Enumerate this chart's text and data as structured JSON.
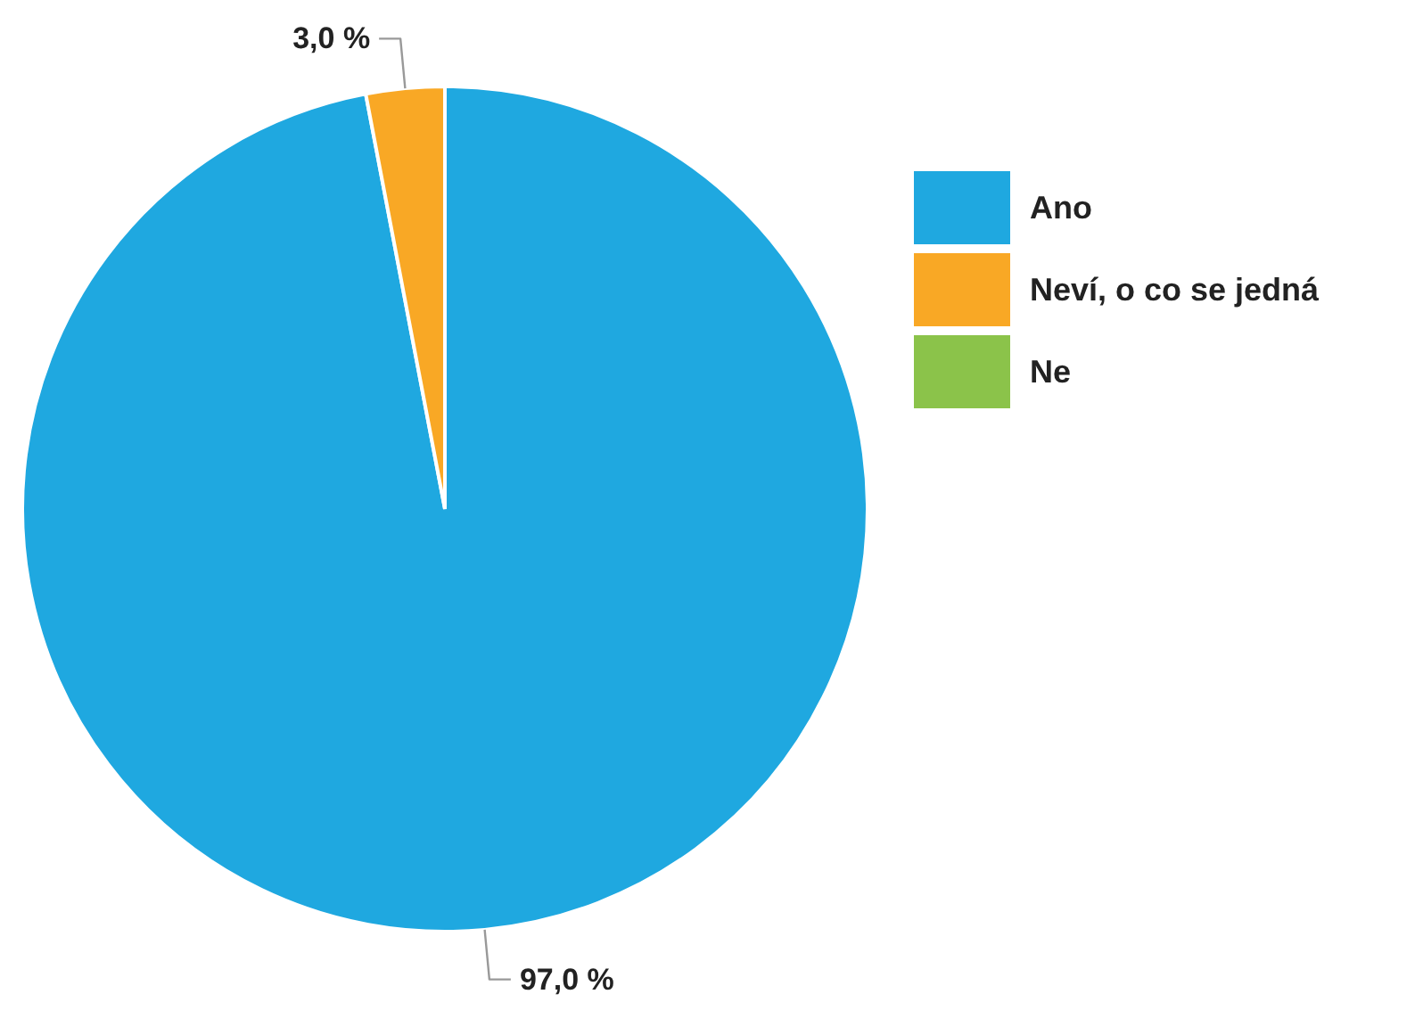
{
  "chart_data": {
    "type": "pie",
    "categories": [
      "Ano",
      "Neví, o co se jedná",
      "Ne"
    ],
    "values": [
      97.0,
      3.0,
      0
    ],
    "colors": [
      "#1fa8e0",
      "#f9a825",
      "#8bc34a"
    ],
    "value_labels": [
      "97,0 %",
      "3,0 %",
      null
    ],
    "legend": "right"
  }
}
